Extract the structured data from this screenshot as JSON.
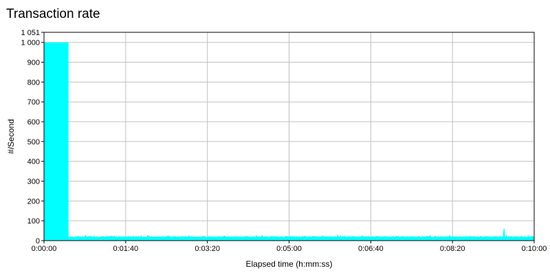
{
  "chart_data": {
    "type": "area",
    "title": "Transaction rate",
    "xlabel": "Elapsed time (h:mm:ss)",
    "ylabel": "#/Second",
    "xlim": [
      0,
      600
    ],
    "ylim": [
      0,
      1051
    ],
    "x_ticks": [
      0,
      100,
      200,
      300,
      400,
      500,
      600
    ],
    "x_tick_labels": [
      "0:00:00",
      "0:01:40",
      "0:03:20",
      "0:05:00",
      "0:06:40",
      "0:08:20",
      "0:10:00"
    ],
    "y_ticks": [
      0,
      100,
      200,
      300,
      400,
      500,
      600,
      700,
      800,
      900,
      1000,
      1051
    ],
    "y_tick_labels": [
      "0",
      "100",
      "200",
      "300",
      "400",
      "500",
      "600",
      "700",
      "800",
      "900",
      "1 000",
      "1 051"
    ],
    "grid": true,
    "color": "#00ffff",
    "series": [
      {
        "x": [
          0,
          30,
          30,
          600
        ],
        "y": [
          1000,
          1000,
          20,
          20
        ]
      }
    ],
    "notes": {
      "baseline_noise_range": [
        14,
        30
      ],
      "spike_near_x": 563,
      "spike_value": 60
    }
  }
}
